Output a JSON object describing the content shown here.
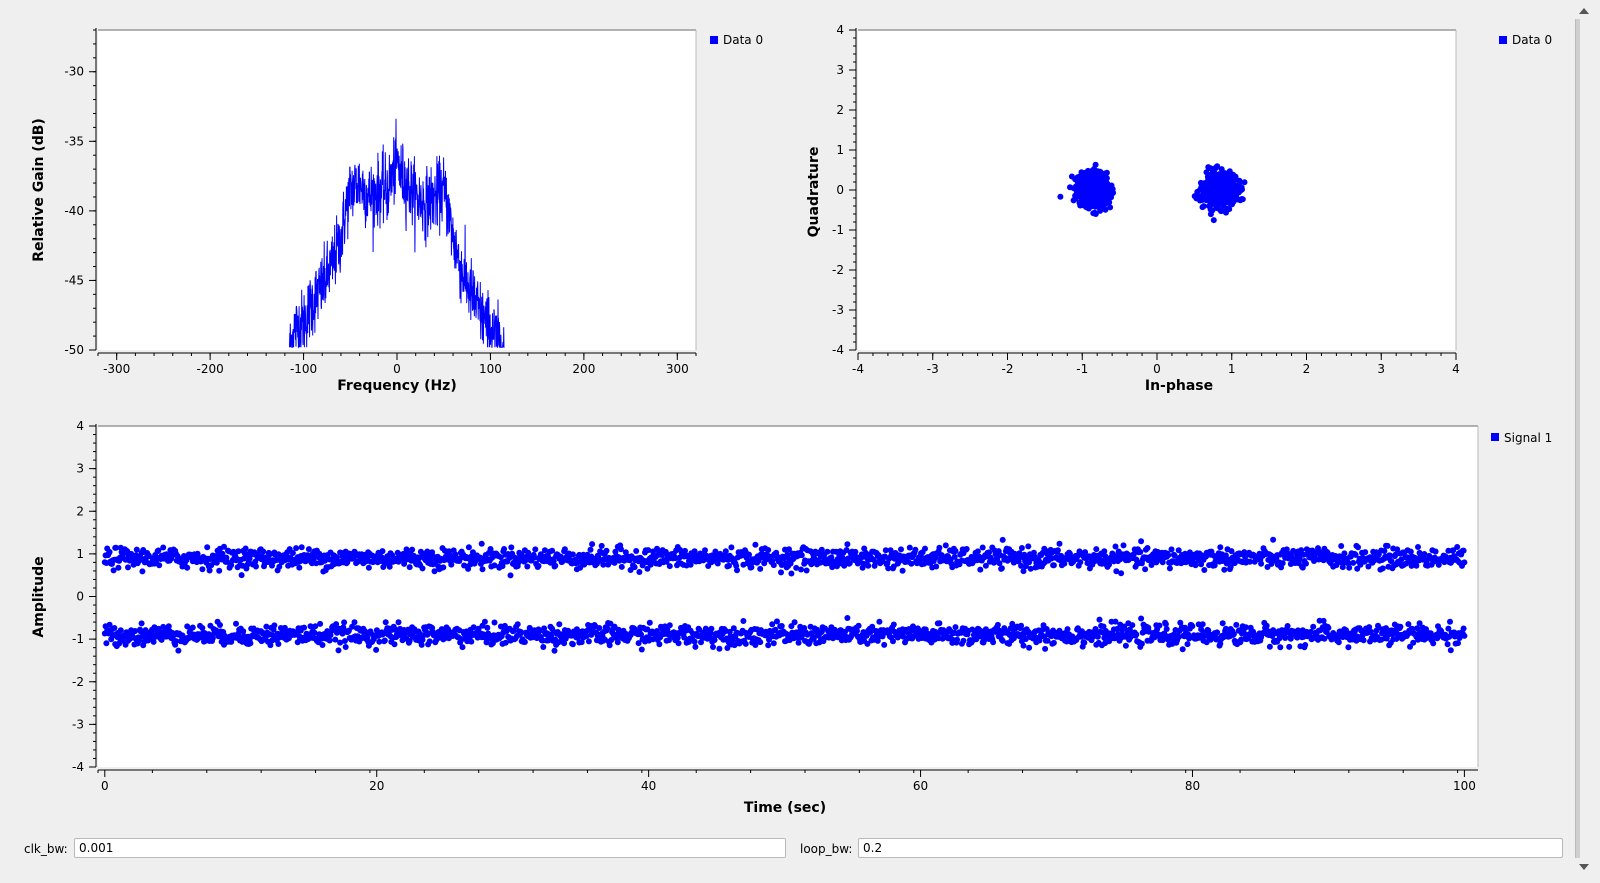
{
  "charts": [
    {
      "type": "line",
      "xlabel": "Frequency (Hz)",
      "ylabel": "Relative Gain (dB)",
      "xlim": [
        -320,
        320
      ],
      "ylim": [
        -50,
        -27
      ],
      "xticks": [
        -300,
        -200,
        -100,
        0,
        100,
        200,
        300
      ],
      "yticks": [
        -50,
        -45,
        -40,
        -35,
        -30
      ],
      "legend": "Data 0",
      "legend_placement": "top-right outside",
      "color": "#0000ff",
      "series": [
        {
          "name": "Data 0",
          "x": [
            -115,
            -110,
            -100,
            -90,
            -80,
            -70,
            -60,
            -55,
            -50,
            -40,
            -30,
            -20,
            -10,
            -5,
            0,
            5,
            10,
            20,
            30,
            40,
            50,
            55,
            60,
            70,
            80,
            90,
            100,
            110,
            115
          ],
          "y": [
            -50,
            -48.5,
            -48,
            -46.5,
            -45.5,
            -44,
            -42,
            -40,
            -38.5,
            -38,
            -39,
            -38.5,
            -38.5,
            -37.5,
            -36.5,
            -37.5,
            -38,
            -39,
            -39.5,
            -39,
            -38.5,
            -40,
            -42,
            -44.5,
            -46,
            -47.5,
            -48.5,
            -49.5,
            -50
          ]
        }
      ]
    },
    {
      "type": "scatter",
      "xlabel": "In-phase",
      "ylabel": "Quadrature",
      "xlim": [
        -4,
        4
      ],
      "ylim": [
        -4,
        4
      ],
      "xticks": [
        -4,
        -3,
        -2,
        -1,
        0,
        1,
        2,
        3,
        4
      ],
      "yticks": [
        -4,
        -3,
        -2,
        -1,
        0,
        1,
        2,
        3,
        4
      ],
      "legend": "Data 0",
      "legend_placement": "top-right outside",
      "color": "#0000ff",
      "series": [
        {
          "name": "Data 0",
          "clusters": [
            {
              "center": [
                -0.85,
                0
              ],
              "spread": [
                0.2,
                0.25
              ]
            },
            {
              "center": [
                0.85,
                0
              ],
              "spread": [
                0.2,
                0.25
              ]
            }
          ]
        }
      ]
    },
    {
      "type": "scatter",
      "xlabel": "Time (sec)",
      "ylabel": "Amplitude",
      "xlim": [
        -0.5,
        101
      ],
      "ylim": [
        -4,
        4
      ],
      "xticks": [
        0,
        20,
        40,
        60,
        80,
        100
      ],
      "yticks": [
        -4,
        -3,
        -2,
        -1,
        0,
        1,
        2,
        3,
        4
      ],
      "legend": "Signal 1",
      "legend_placement": "top-right outside",
      "color": "#0000ff",
      "series": [
        {
          "name": "Signal 1",
          "x_range": [
            0,
            100
          ],
          "levels": [
            0.9,
            -0.9
          ],
          "spread": 0.12
        }
      ]
    }
  ],
  "controls": [
    {
      "label": "clk_bw:",
      "value": "0.001"
    },
    {
      "label": "loop_bw:",
      "value": "0.2"
    }
  ]
}
